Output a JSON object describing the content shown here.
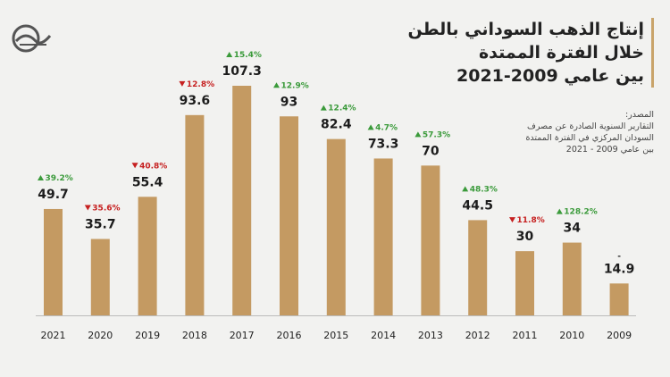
{
  "title_lines": [
    "إنتاج الذهب السوداني بالطن",
    "خلال الفترة الممتدة",
    "بين عامي 2009-2021"
  ],
  "source_lines": [
    "المصدر:",
    "التقارير السنوية الصادرة عن مصرف",
    "السودان المركزي في الفترة الممتدة",
    "بين عامي 2009 - 2021"
  ],
  "colors": {
    "bar": "#c49a62",
    "up": "#3a9a3a",
    "down": "#c62020",
    "baseline": "#bbbbbb"
  },
  "chart_data": {
    "type": "bar",
    "categories": [
      "2021",
      "2020",
      "2019",
      "2018",
      "2017",
      "2016",
      "2015",
      "2014",
      "2013",
      "2012",
      "2011",
      "2010",
      "2009"
    ],
    "values": [
      49.7,
      35.7,
      55.4,
      93.6,
      107.3,
      93,
      82.4,
      73.3,
      70,
      44.5,
      30,
      34,
      14.9
    ],
    "value_labels": [
      "49.7",
      "35.7",
      "55.4",
      "93.6",
      "107.3",
      "93",
      "82.4",
      "73.3",
      "70",
      "44.5",
      "30",
      "34",
      "14.9"
    ],
    "changes": [
      {
        "text": "39.2%",
        "dir": "up"
      },
      {
        "text": "35.6%",
        "dir": "down"
      },
      {
        "text": "40.8%",
        "dir": "down"
      },
      {
        "text": "12.8%",
        "dir": "down"
      },
      {
        "text": "15.4%",
        "dir": "up"
      },
      {
        "text": "12.9%",
        "dir": "up"
      },
      {
        "text": "12.4%",
        "dir": "up"
      },
      {
        "text": "4.7%",
        "dir": "up"
      },
      {
        "text": "57.3%",
        "dir": "up"
      },
      {
        "text": "48.3%",
        "dir": "up"
      },
      {
        "text": "11.8%",
        "dir": "down"
      },
      {
        "text": "128.2%",
        "dir": "up"
      },
      {
        "text": "-",
        "dir": "none"
      }
    ],
    "ylim": [
      0,
      107.3
    ],
    "grid": false,
    "xlabel": "",
    "ylabel": ""
  }
}
